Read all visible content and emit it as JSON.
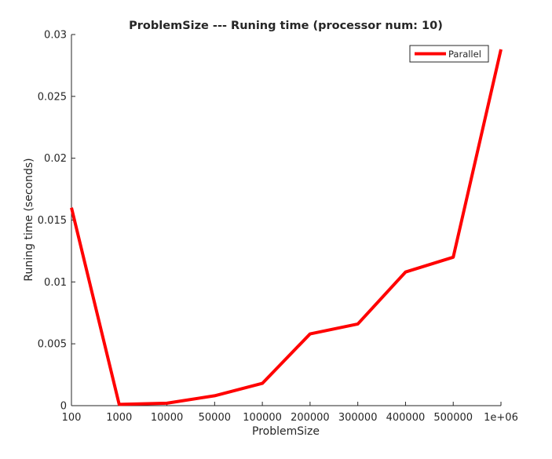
{
  "chart_data": {
    "type": "line",
    "title": "ProblemSize --- Runing time (processor num: 10)",
    "xlabel": "ProblemSize",
    "ylabel": "Runing time (seconds)",
    "categories": [
      "100",
      "1000",
      "10000",
      "50000",
      "100000",
      "200000",
      "300000",
      "400000",
      "500000",
      "1e+06"
    ],
    "x_scale": "categorical",
    "ylim": [
      0,
      0.03
    ],
    "yticks": [
      "0",
      "0.005",
      "0.01",
      "0.015",
      "0.02",
      "0.025",
      "0.03"
    ],
    "ytick_values": [
      0,
      0.005,
      0.01,
      0.015,
      0.02,
      0.025,
      0.03
    ],
    "grid": false,
    "legend_position": "top-right",
    "series": [
      {
        "name": "Parallel",
        "color": "#ff0000",
        "values": [
          0.016,
          0.0001,
          0.0002,
          0.0008,
          0.0018,
          0.0058,
          0.0066,
          0.0108,
          0.012,
          0.0288
        ]
      }
    ]
  }
}
